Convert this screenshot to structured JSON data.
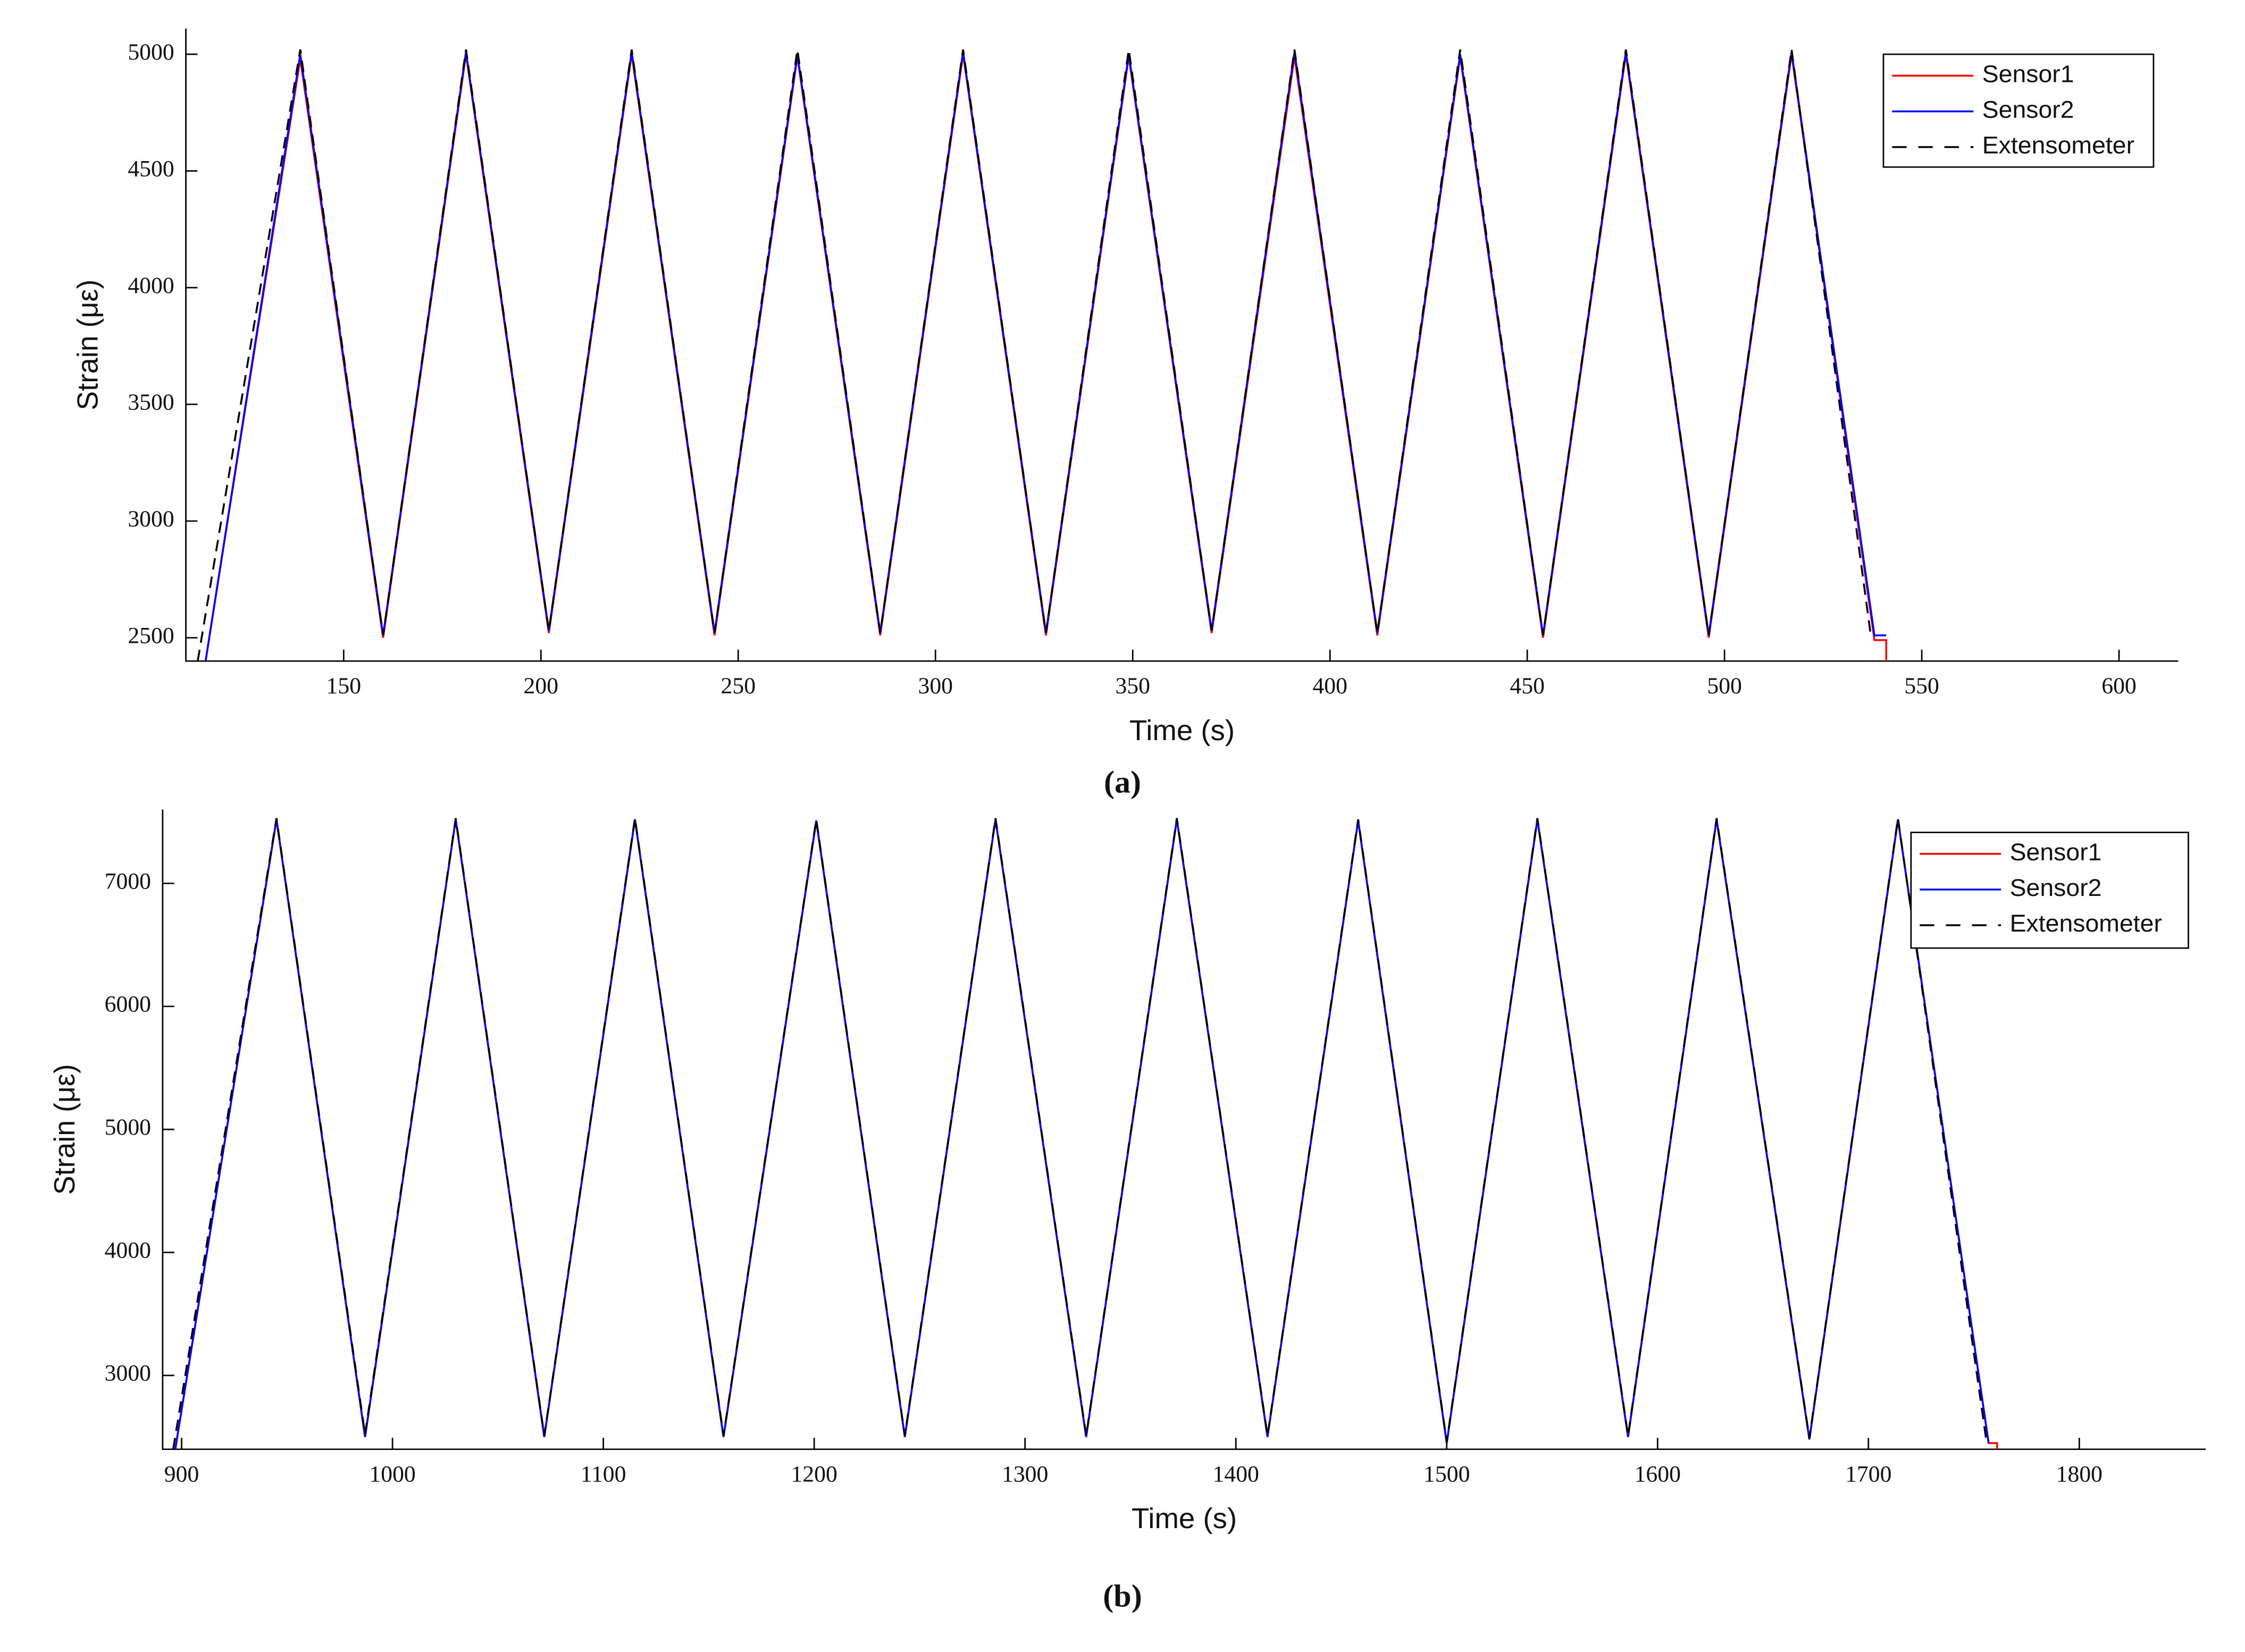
{
  "chart_data": [
    {
      "type": "line",
      "caption": "(a)",
      "x_label": "Time (s)",
      "y_label": "Strain (με)",
      "xlim": [
        110,
        615
      ],
      "ylim": [
        2400,
        5110
      ],
      "xticks": [
        150,
        200,
        250,
        300,
        350,
        400,
        450,
        500,
        550,
        600
      ],
      "yticks": [
        2500,
        3000,
        3500,
        4000,
        4500,
        5000
      ],
      "legend": "upper right",
      "series": [
        {
          "name": "Sensor1",
          "color": "#ff0000",
          "linestyle": "solid",
          "x": [
            115,
            139,
            160,
            181,
            202,
            223,
            244,
            265,
            286,
            307,
            328,
            349,
            370,
            391,
            412,
            433,
            454,
            475,
            496,
            517,
            538,
            541,
            541
          ],
          "values": [
            2400,
            4980,
            2500,
            5000,
            2520,
            5000,
            2510,
            4990,
            2510,
            5000,
            2510,
            4990,
            2520,
            4990,
            2510,
            4990,
            2500,
            5000,
            2500,
            5000,
            2490,
            2490,
            2400
          ]
        },
        {
          "name": "Sensor2",
          "color": "#0000ff",
          "linestyle": "solid",
          "x": [
            115,
            139,
            160,
            181,
            202,
            223,
            244,
            265,
            286,
            307,
            328,
            349,
            370,
            391,
            412,
            433,
            454,
            475,
            496,
            517,
            538,
            541
          ],
          "values": [
            2400,
            5000,
            2510,
            5010,
            2530,
            5010,
            2520,
            5000,
            2520,
            5010,
            2520,
            5000,
            2530,
            5010,
            2520,
            5000,
            2510,
            5010,
            2510,
            5010,
            2510,
            2510
          ]
        },
        {
          "name": "Extensometer",
          "color": "#000000",
          "linestyle": "dashed",
          "x": [
            113,
            139,
            160,
            181,
            202,
            223,
            244,
            265,
            286,
            307,
            328,
            349,
            370,
            391,
            412,
            433,
            454,
            475,
            496,
            517,
            537
          ],
          "values": [
            2400,
            5020,
            2510,
            5020,
            2530,
            5020,
            2520,
            5020,
            2520,
            5020,
            2520,
            5020,
            2530,
            5020,
            2520,
            5020,
            2510,
            5020,
            2510,
            5020,
            2520
          ]
        }
      ]
    },
    {
      "type": "line",
      "caption": "(b)",
      "x_label": "Time (s)",
      "y_label": "Strain (με)",
      "xlim": [
        891,
        1860
      ],
      "ylim": [
        2400,
        7600
      ],
      "xticks": [
        900,
        1000,
        1100,
        1200,
        1300,
        1400,
        1500,
        1600,
        1700,
        1800
      ],
      "yticks": [
        3000,
        4000,
        5000,
        6000,
        7000
      ],
      "legend": "upper right",
      "series": [
        {
          "name": "Sensor1",
          "color": "#ff0000",
          "linestyle": "solid",
          "x": [
            897,
            945,
            987,
            1030,
            1072,
            1115,
            1157,
            1201,
            1243,
            1286,
            1329,
            1372,
            1415,
            1458,
            1500,
            1543,
            1586,
            1628,
            1672,
            1714,
            1757,
            1761,
            1761
          ],
          "values": [
            2400,
            7520,
            2500,
            7520,
            2500,
            7520,
            2500,
            7510,
            2500,
            7520,
            2500,
            7520,
            2500,
            7510,
            2450,
            7520,
            2500,
            7520,
            2480,
            7520,
            2450,
            2450,
            2400
          ]
        },
        {
          "name": "Sensor2",
          "color": "#0000ff",
          "linestyle": "solid",
          "x": [
            897,
            945,
            987,
            1030,
            1072,
            1115,
            1157,
            1201,
            1243,
            1286,
            1329,
            1372,
            1415,
            1458,
            1500,
            1543,
            1586,
            1628,
            1672,
            1714,
            1757
          ],
          "values": [
            2400,
            7520,
            2500,
            7520,
            2500,
            7520,
            2500,
            7510,
            2500,
            7520,
            2500,
            7520,
            2500,
            7510,
            2450,
            7520,
            2500,
            7520,
            2480,
            7520,
            2450
          ]
        },
        {
          "name": "Extensometer",
          "color": "#000000",
          "linestyle": "dashed",
          "x": [
            896,
            945,
            987,
            1030,
            1072,
            1115,
            1157,
            1201,
            1243,
            1286,
            1329,
            1372,
            1415,
            1458,
            1500,
            1543,
            1586,
            1628,
            1672,
            1714,
            1756
          ],
          "values": [
            2400,
            7530,
            2520,
            7530,
            2510,
            7530,
            2510,
            7520,
            2510,
            7530,
            2510,
            7530,
            2510,
            7520,
            2460,
            7530,
            2510,
            7530,
            2490,
            7530,
            2460
          ]
        }
      ]
    }
  ]
}
